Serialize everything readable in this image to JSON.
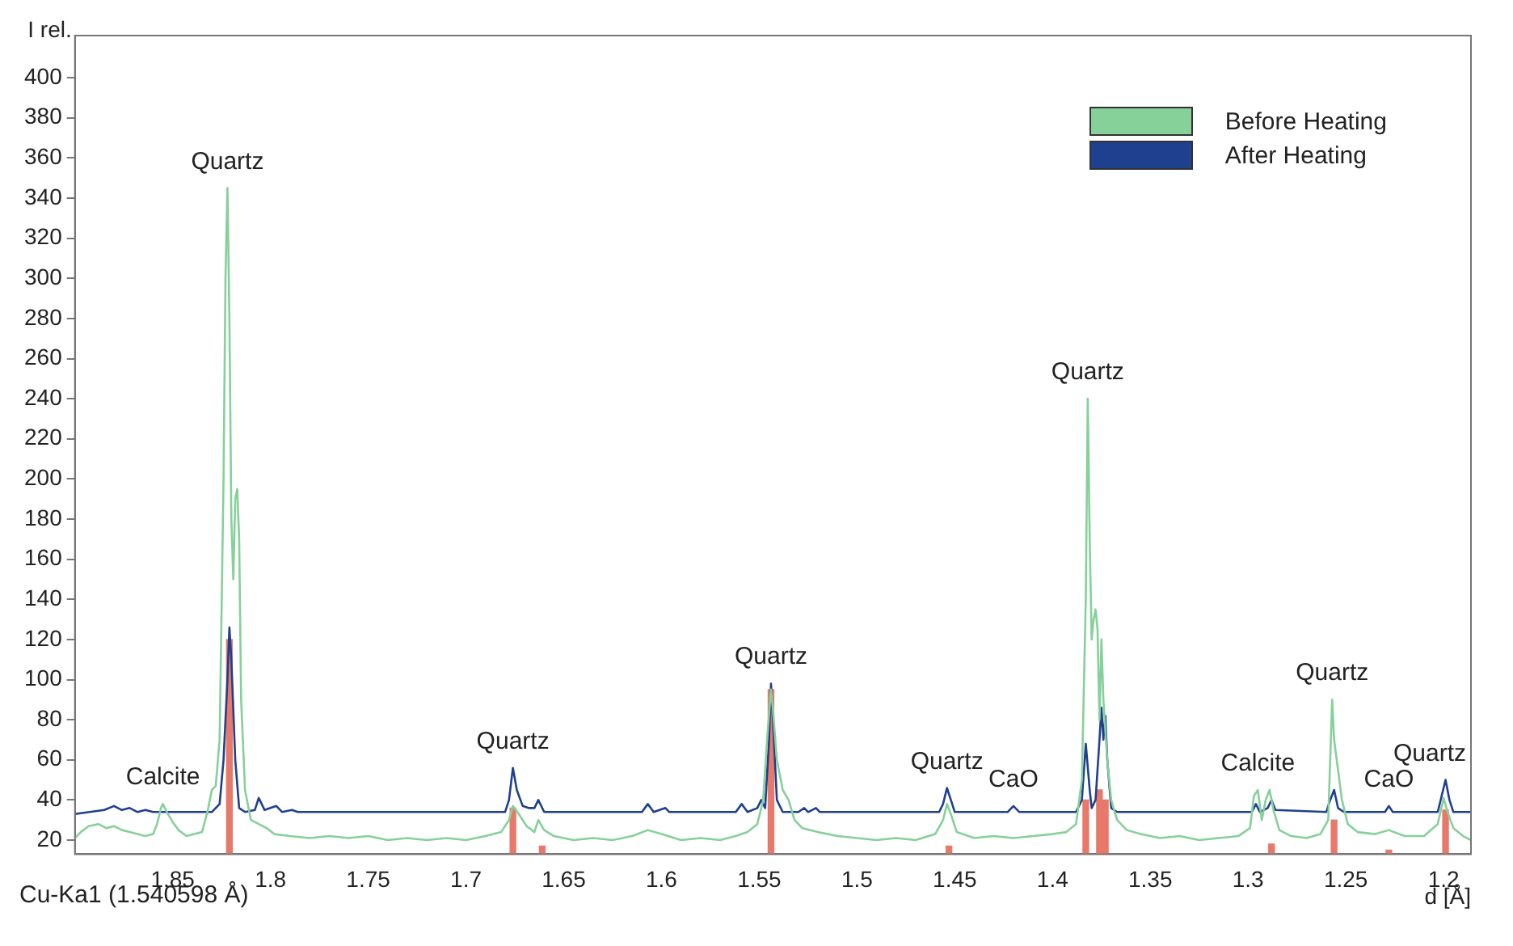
{
  "chart_data": {
    "type": "line",
    "xlabel": "d [Å]",
    "ylabel": "I rel.",
    "xlim": [
      1.9,
      1.186
    ],
    "xticks": [
      1.85,
      1.8,
      1.75,
      1.7,
      1.65,
      1.6,
      1.55,
      1.5,
      1.45,
      1.4,
      1.35,
      1.3,
      1.25,
      1.2
    ],
    "ylim": [
      13,
      421
    ],
    "yticks": [
      20,
      40,
      60,
      80,
      100,
      120,
      140,
      160,
      180,
      200,
      220,
      240,
      260,
      280,
      300,
      320,
      340,
      360,
      380,
      400
    ],
    "grid": false,
    "legend": "top right",
    "marker": "none",
    "line_style": "solid",
    "series": [
      {
        "name": "Before Heating",
        "color": "#86d09a",
        "x": [
          1.9,
          1.897,
          1.893,
          1.888,
          1.884,
          1.88,
          1.876,
          1.872,
          1.868,
          1.864,
          1.86,
          1.858,
          1.856,
          1.855,
          1.853,
          1.85,
          1.847,
          1.843,
          1.839,
          1.835,
          1.832,
          1.83,
          1.828,
          1.826,
          1.824,
          1.823,
          1.822,
          1.821,
          1.82,
          1.819,
          1.818,
          1.817,
          1.816,
          1.815,
          1.813,
          1.81,
          1.806,
          1.802,
          1.798,
          1.79,
          1.78,
          1.77,
          1.76,
          1.75,
          1.74,
          1.73,
          1.72,
          1.71,
          1.7,
          1.69,
          1.682,
          1.678,
          1.676,
          1.673,
          1.669,
          1.665,
          1.663,
          1.66,
          1.655,
          1.645,
          1.635,
          1.625,
          1.615,
          1.607,
          1.6,
          1.59,
          1.58,
          1.57,
          1.562,
          1.556,
          1.551,
          1.548,
          1.546,
          1.544,
          1.543,
          1.541,
          1.538,
          1.535,
          1.532,
          1.528,
          1.52,
          1.51,
          1.5,
          1.49,
          1.48,
          1.47,
          1.46,
          1.456,
          1.454,
          1.452,
          1.449,
          1.44,
          1.43,
          1.42,
          1.41,
          1.4,
          1.393,
          1.388,
          1.385,
          1.383,
          1.382,
          1.381,
          1.38,
          1.379,
          1.378,
          1.377,
          1.376,
          1.375,
          1.374,
          1.372,
          1.37,
          1.367,
          1.362,
          1.355,
          1.345,
          1.335,
          1.325,
          1.315,
          1.305,
          1.299,
          1.297,
          1.295,
          1.293,
          1.291,
          1.289,
          1.287,
          1.284,
          1.278,
          1.27,
          1.263,
          1.259,
          1.257,
          1.256,
          1.254,
          1.252,
          1.249,
          1.244,
          1.235,
          1.228,
          1.22,
          1.21,
          1.203,
          1.2,
          1.198,
          1.195,
          1.19,
          1.186
        ],
        "values": [
          21,
          24,
          27,
          28,
          26,
          27,
          25,
          24,
          23,
          22,
          23,
          28,
          36,
          38,
          34,
          29,
          25,
          22,
          23,
          24,
          35,
          45,
          47,
          70,
          200,
          300,
          345,
          280,
          180,
          150,
          190,
          195,
          170,
          90,
          45,
          30,
          28,
          26,
          23,
          22,
          21,
          22,
          21,
          22,
          20,
          21,
          20,
          21,
          20,
          22,
          24,
          30,
          37,
          33,
          27,
          24,
          30,
          25,
          22,
          20,
          21,
          20,
          22,
          25,
          23,
          20,
          21,
          20,
          22,
          24,
          28,
          40,
          70,
          95,
          85,
          60,
          45,
          40,
          30,
          26,
          24,
          22,
          21,
          20,
          21,
          20,
          23,
          30,
          38,
          33,
          24,
          21,
          22,
          21,
          22,
          23,
          24,
          28,
          50,
          140,
          240,
          170,
          120,
          130,
          135,
          125,
          80,
          120,
          90,
          60,
          40,
          30,
          25,
          23,
          21,
          22,
          20,
          21,
          22,
          26,
          42,
          45,
          30,
          40,
          45,
          35,
          25,
          22,
          21,
          23,
          30,
          90,
          70,
          55,
          40,
          28,
          24,
          23,
          25,
          22,
          22,
          28,
          41,
          34,
          26,
          22,
          20
        ]
      },
      {
        "name": "After Heating",
        "color": "#1f3f8f",
        "x": [
          1.9,
          1.885,
          1.88,
          1.876,
          1.872,
          1.868,
          1.864,
          1.86,
          1.83,
          1.826,
          1.824,
          1.822,
          1.821,
          1.82,
          1.818,
          1.816,
          1.813,
          1.808,
          1.806,
          1.803,
          1.797,
          1.794,
          1.789,
          1.786,
          1.68,
          1.678,
          1.676,
          1.674,
          1.671,
          1.668,
          1.665,
          1.663,
          1.66,
          1.61,
          1.607,
          1.604,
          1.598,
          1.596,
          1.562,
          1.559,
          1.556,
          1.551,
          1.549,
          1.547,
          1.545,
          1.544,
          1.543,
          1.541,
          1.538,
          1.53,
          1.527,
          1.525,
          1.521,
          1.519,
          1.458,
          1.456,
          1.454,
          1.452,
          1.45,
          1.423,
          1.42,
          1.417,
          1.388,
          1.385,
          1.383,
          1.381,
          1.38,
          1.378,
          1.376,
          1.375,
          1.374,
          1.373,
          1.372,
          1.37,
          1.367,
          1.298,
          1.296,
          1.294,
          1.29,
          1.288,
          1.286,
          1.26,
          1.258,
          1.256,
          1.254,
          1.251,
          1.23,
          1.228,
          1.226,
          1.203,
          1.201,
          1.199,
          1.197,
          1.195,
          1.186
        ],
        "values": [
          33,
          35,
          37,
          35,
          36,
          34,
          35,
          34,
          34,
          38,
          60,
          100,
          126,
          110,
          60,
          36,
          34,
          35,
          41,
          35,
          37,
          34,
          35,
          34,
          34,
          40,
          56,
          45,
          37,
          36,
          36,
          40,
          34,
          34,
          38,
          34,
          36,
          34,
          34,
          38,
          34,
          36,
          40,
          36,
          70,
          98,
          80,
          40,
          34,
          34,
          36,
          34,
          36,
          34,
          34,
          38,
          46,
          40,
          34,
          34,
          37,
          34,
          34,
          40,
          68,
          45,
          36,
          40,
          70,
          86,
          70,
          82,
          60,
          36,
          34,
          34,
          38,
          34,
          36,
          40,
          35,
          34,
          40,
          45,
          36,
          34,
          34,
          37,
          34,
          34,
          42,
          50,
          40,
          34,
          34
        ]
      },
      {
        "type": "bar",
        "color": "#e8786a",
        "x": [
          1.821,
          1.676,
          1.661,
          1.544,
          1.453,
          1.383,
          1.376,
          1.373,
          1.288,
          1.256,
          1.228,
          1.199
        ],
        "values": [
          120,
          36,
          17,
          95,
          17,
          40,
          45,
          40,
          18,
          30,
          15,
          35
        ]
      }
    ],
    "annotations": [
      {
        "text": "Quartz",
        "x": 1.822,
        "y": 345
      },
      {
        "text": "Calcite",
        "x": 1.855,
        "y": 38
      },
      {
        "text": "Quartz",
        "x": 1.676,
        "y": 56
      },
      {
        "text": "Quartz",
        "x": 1.544,
        "y": 98
      },
      {
        "text": "Quartz",
        "x": 1.454,
        "y": 46
      },
      {
        "text": "CaO",
        "x": 1.42,
        "y": 37
      },
      {
        "text": "Quartz",
        "x": 1.382,
        "y": 240
      },
      {
        "text": "Calcite",
        "x": 1.295,
        "y": 45
      },
      {
        "text": "Quartz",
        "x": 1.257,
        "y": 90
      },
      {
        "text": "CaO",
        "x": 1.228,
        "y": 37
      },
      {
        "text": "Quartz",
        "x": 1.199,
        "y": 50
      },
      "Cu-Ka1 (1.540598 Å)"
    ]
  }
}
